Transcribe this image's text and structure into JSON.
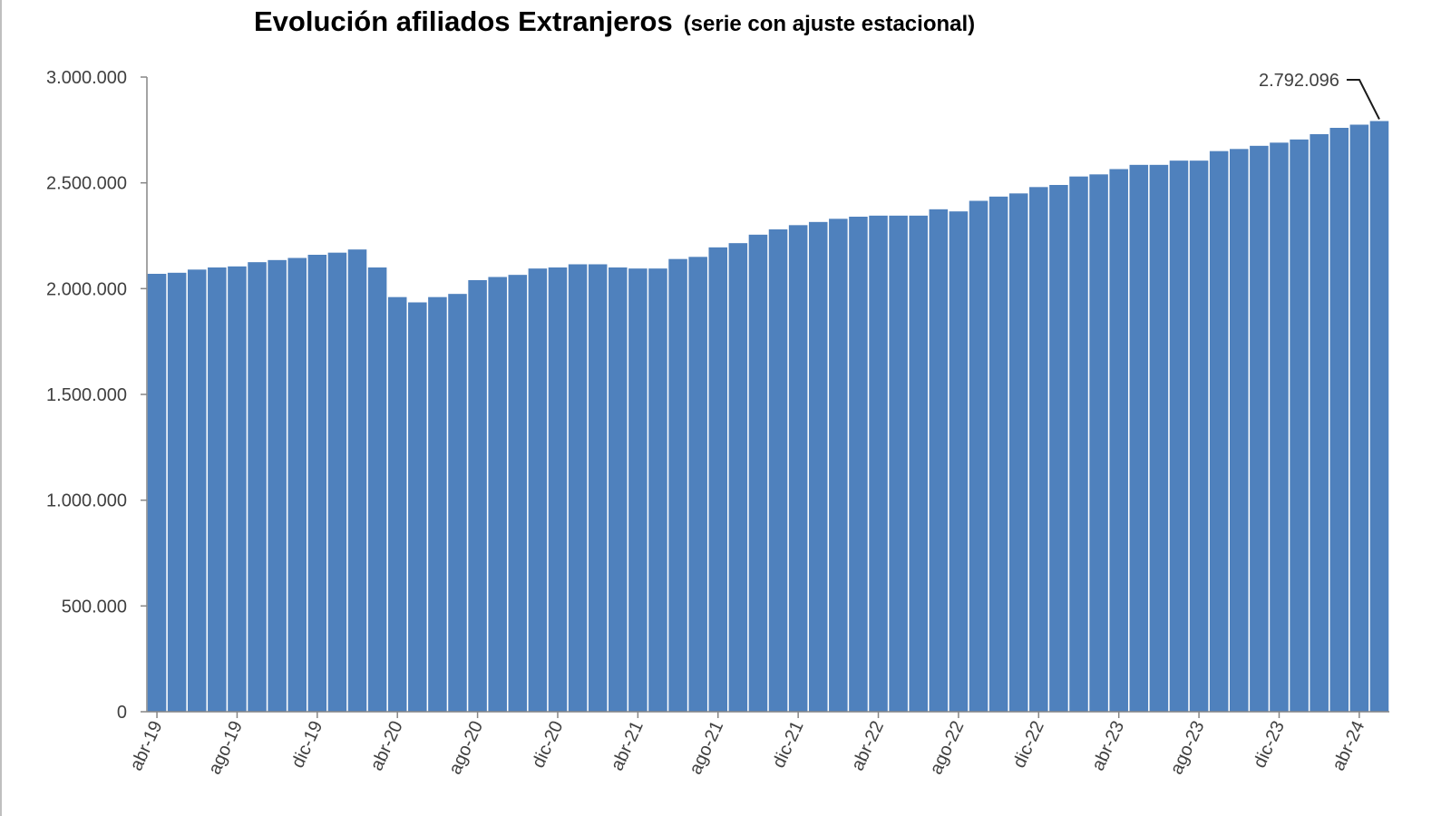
{
  "chart_data": {
    "type": "bar",
    "title": "Evolución afiliados Extranjeros",
    "subtitle": "(serie con ajuste estacional)",
    "xlabel": "",
    "ylabel": "",
    "ylim": [
      0,
      3000000
    ],
    "yticks": [
      0,
      500000,
      1000000,
      1500000,
      2000000,
      2500000,
      3000000
    ],
    "ytick_labels": [
      "0",
      "500.000",
      "1.000.000",
      "1.500.000",
      "2.000.000",
      "2.500.000",
      "3.000.000"
    ],
    "xtick_labels": [
      "abr-19",
      "ago-19",
      "dic-19",
      "abr-20",
      "ago-20",
      "dic-20",
      "abr-21",
      "ago-21",
      "dic-21",
      "abr-22",
      "ago-22",
      "dic-22",
      "abr-23",
      "ago-23",
      "dic-23",
      "abr-24"
    ],
    "xtick_every": 4,
    "grid": false,
    "color": "#4f81bd",
    "categories": [
      "abr-19",
      "may-19",
      "jun-19",
      "jul-19",
      "ago-19",
      "sep-19",
      "oct-19",
      "nov-19",
      "dic-19",
      "ene-20",
      "feb-20",
      "mar-20",
      "abr-20",
      "may-20",
      "jun-20",
      "jul-20",
      "ago-20",
      "sep-20",
      "oct-20",
      "nov-20",
      "dic-20",
      "ene-21",
      "feb-21",
      "mar-21",
      "abr-21",
      "may-21",
      "jun-21",
      "jul-21",
      "ago-21",
      "sep-21",
      "oct-21",
      "nov-21",
      "dic-21",
      "ene-22",
      "feb-22",
      "mar-22",
      "abr-22",
      "may-22",
      "jun-22",
      "jul-22",
      "ago-22",
      "sep-22",
      "oct-22",
      "nov-22",
      "dic-22",
      "ene-23",
      "feb-23",
      "mar-23",
      "abr-23",
      "may-23",
      "jun-23",
      "jul-23",
      "ago-23",
      "sep-23",
      "oct-23",
      "nov-23",
      "dic-23",
      "ene-24",
      "feb-24",
      "mar-24",
      "abr-24",
      "may-24"
    ],
    "values": [
      2070000,
      2075000,
      2090000,
      2100000,
      2105000,
      2125000,
      2135000,
      2145000,
      2160000,
      2170000,
      2185000,
      2100000,
      1960000,
      1935000,
      1960000,
      1975000,
      2040000,
      2055000,
      2065000,
      2095000,
      2100000,
      2115000,
      2115000,
      2100000,
      2095000,
      2095000,
      2140000,
      2150000,
      2195000,
      2215000,
      2255000,
      2280000,
      2300000,
      2315000,
      2330000,
      2340000,
      2345000,
      2345000,
      2345000,
      2375000,
      2365000,
      2415000,
      2435000,
      2450000,
      2480000,
      2490000,
      2530000,
      2540000,
      2565000,
      2585000,
      2585000,
      2605000,
      2605000,
      2650000,
      2660000,
      2675000,
      2690000,
      2705000,
      2730000,
      2760000,
      2775000,
      2792096
    ],
    "annotations": [
      {
        "category": "may-24",
        "label": "2.792.096"
      }
    ]
  }
}
